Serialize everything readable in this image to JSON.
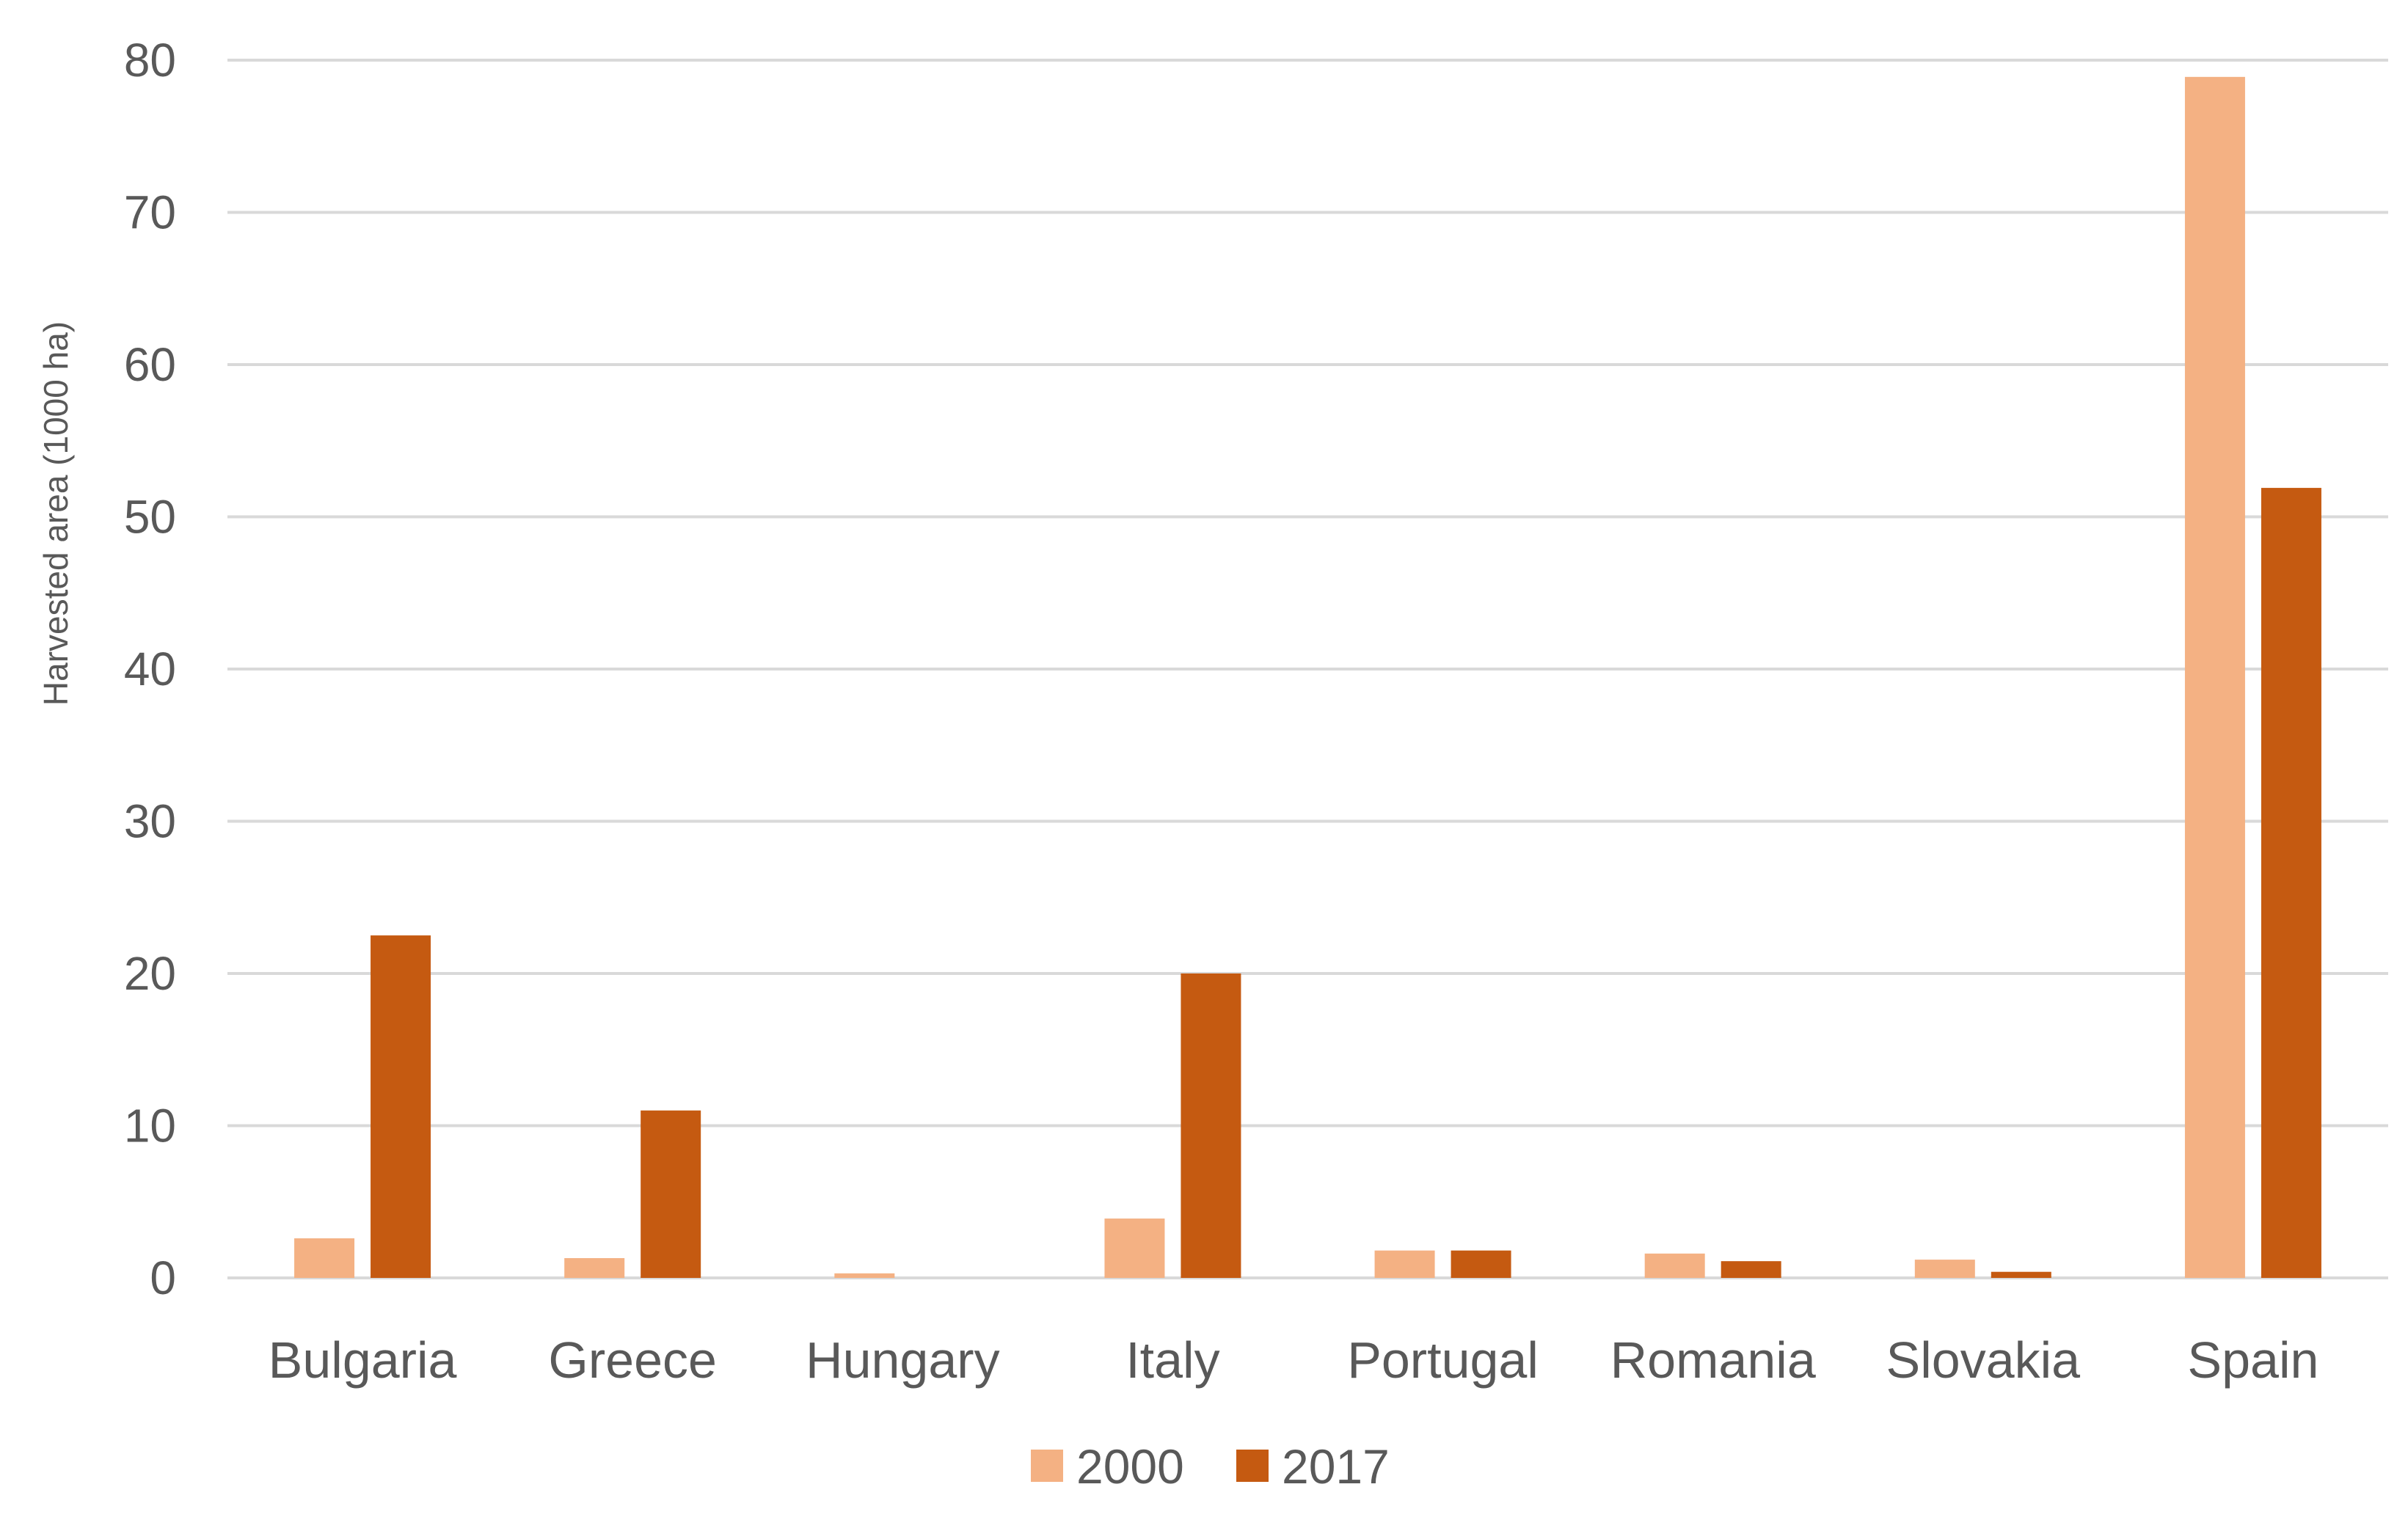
{
  "chart_data": {
    "type": "bar",
    "title": "",
    "xlabel": "",
    "ylabel": "Harvested area (1000 ha)",
    "categories": [
      "Bulgaria",
      "Greece",
      "Hungary",
      "Italy",
      "Portugal",
      "Romania",
      "Slovakia",
      "Spain"
    ],
    "series": [
      {
        "name": "2000",
        "color": "#F4B183",
        "values": [
          2.6,
          1.3,
          0.3,
          3.9,
          1.8,
          1.6,
          1.2,
          78.9
        ]
      },
      {
        "name": "2017",
        "color": "#C55A11",
        "values": [
          22.5,
          11.0,
          0.0,
          20.0,
          1.8,
          1.1,
          0.4,
          51.9
        ]
      }
    ],
    "ylim": [
      0,
      80
    ],
    "yticks": [
      0,
      10,
      20,
      30,
      40,
      50,
      60,
      70,
      80
    ],
    "grid": true,
    "legend_position": "bottom-center",
    "gridline_color": "#D9D9D9",
    "text_color": "#595959"
  }
}
